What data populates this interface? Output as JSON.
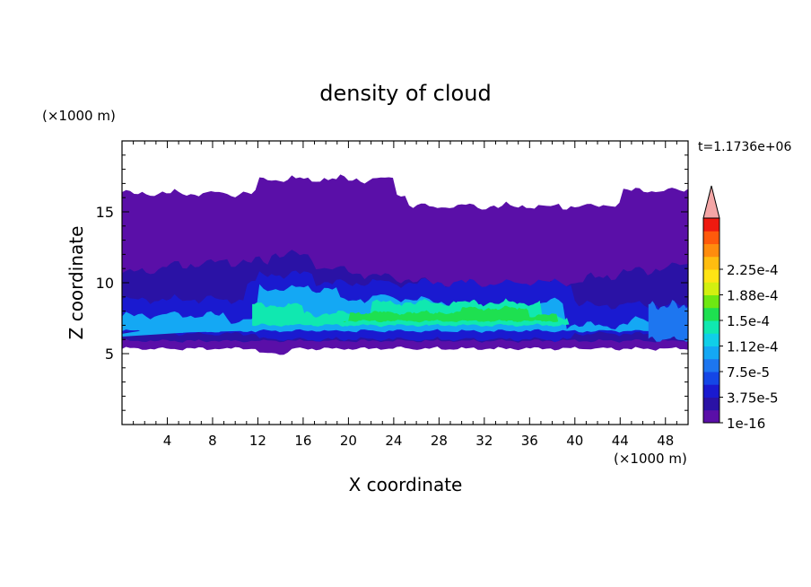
{
  "chart_data": {
    "type": "heatmap",
    "title": "density of cloud",
    "xlabel": "X coordinate",
    "ylabel": "Z coordinate",
    "x_unit": "(×1000 m)",
    "y_unit": "(×1000 m)",
    "time_label": "t=1.1736e+06",
    "xlim": [
      0,
      50
    ],
    "ylim": [
      0,
      20
    ],
    "x_ticks": [
      4,
      8,
      12,
      16,
      20,
      24,
      28,
      32,
      36,
      40,
      44,
      48
    ],
    "y_ticks": [
      5,
      10,
      15
    ],
    "grid": false,
    "colorbar": {
      "labels": [
        "2.25e-4",
        "1.88e-4",
        "1.5e-4",
        "1.12e-4",
        "7.5e-5",
        "3.75e-5",
        "1e-16"
      ],
      "colors": [
        "#5a0fa8",
        "#2a12a5",
        "#1a1ad0",
        "#1446e6",
        "#1d76f0",
        "#14a8f4",
        "#10cfe8",
        "#10e8b0",
        "#1ee050",
        "#6ee812",
        "#d2f010",
        "#ffe414",
        "#ffbd10",
        "#ff8c0e",
        "#ff5a0c",
        "#ef1a10"
      ],
      "extend_color": "#f4a6a6"
    },
    "cloud_layers": [
      {
        "level": "1e-16",
        "color": "#5a0fa8",
        "z_range": [
          5.3,
          17.3
        ]
      },
      {
        "level": "1.9e-5",
        "color": "#2a12a5",
        "z_range": [
          5.8,
          11.5
        ]
      },
      {
        "level": "3.75e-5",
        "color": "#1a1ad0",
        "z_range": [
          5.8,
          10.5
        ]
      },
      {
        "level": "7.5e-5",
        "color": "#14a8f4",
        "z_range": [
          6.5,
          9.5
        ]
      },
      {
        "level": "1.12e-4",
        "color": "#10e8b0",
        "z_range": [
          7.0,
          8.8
        ]
      },
      {
        "level": "1.3e-4",
        "color": "#1ee050",
        "z_range": [
          7.3,
          8.3
        ]
      }
    ]
  }
}
